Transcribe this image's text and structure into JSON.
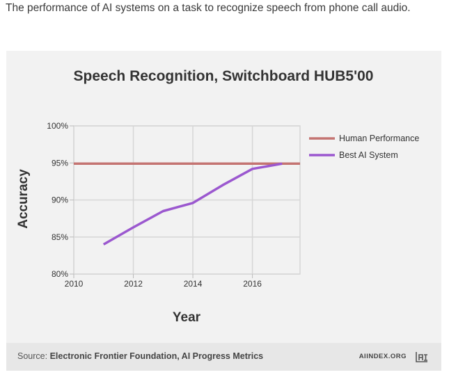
{
  "caption": "The performance of AI systems on a task to recognize speech from phone call audio.",
  "footer": {
    "source_prefix": "Source: ",
    "source_name": "Electronic Frontier Foundation, AI Progress Metrics",
    "brand": "AIINDEX.ORG",
    "logo_icon": "ai-index-logo-icon"
  },
  "chart_data": {
    "type": "line",
    "title": "Speech Recognition, Switchboard HUB5'00",
    "xlabel": "Year",
    "ylabel": "Accuracy",
    "xlim": [
      2010,
      2017.6
    ],
    "ylim": [
      80,
      100
    ],
    "x_ticks": [
      2010,
      2012,
      2014,
      2016
    ],
    "x_tick_labels": [
      "2010",
      "2012",
      "2014",
      "2016"
    ],
    "y_ticks": [
      80,
      85,
      90,
      95,
      100
    ],
    "y_tick_labels": [
      "80%",
      "85%",
      "90%",
      "95%",
      "100%"
    ],
    "grid": true,
    "legend_position": "right",
    "series": [
      {
        "name": "Human Performance",
        "color": "#c47472",
        "x": [
          2010,
          2017.6
        ],
        "values": [
          94.9,
          94.9
        ]
      },
      {
        "name": "Best AI System",
        "color": "#9b58cf",
        "x": [
          2011,
          2012,
          2013,
          2014,
          2015,
          2016,
          2017
        ],
        "values": [
          84.0,
          86.3,
          88.5,
          89.6,
          92.0,
          94.2,
          94.9
        ]
      }
    ]
  }
}
